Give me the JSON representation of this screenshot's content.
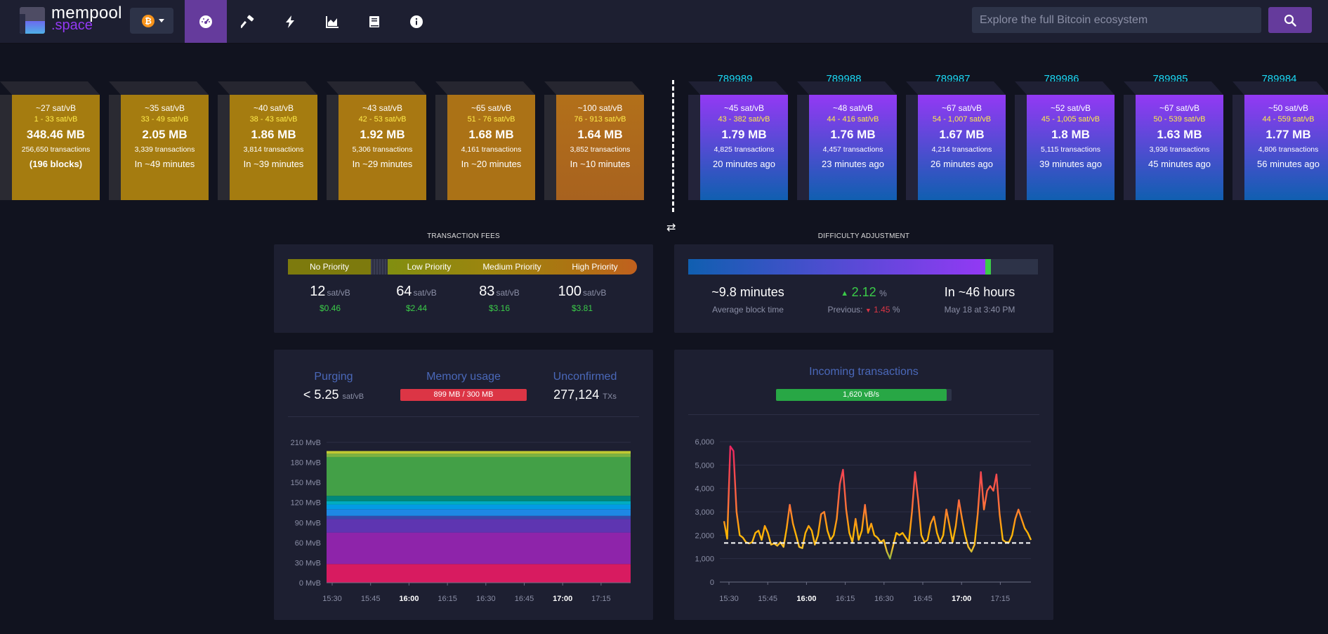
{
  "header": {
    "logo_line1": "mempool",
    "logo_line2": ".space",
    "network_symbol": "₿",
    "nav": [
      {
        "name": "dashboard",
        "icon": "gauge-icon",
        "active": true
      },
      {
        "name": "mining",
        "icon": "hammer-icon"
      },
      {
        "name": "lightning",
        "icon": "bolt-icon"
      },
      {
        "name": "graphs",
        "icon": "chart-area-icon"
      },
      {
        "name": "docs",
        "icon": "book-icon"
      },
      {
        "name": "about",
        "icon": "info-icon"
      }
    ],
    "search_placeholder": "Explore the full Bitcoin ecosystem",
    "colors": {
      "bar": "#1d1f31",
      "active": "#653b9c",
      "search_btn": "#653b9c"
    }
  },
  "mempool_blocks": [
    {
      "fee": "~27 sat/vB",
      "range": "1 - 33 sat/vB",
      "size": "348.46 MB",
      "txs": "256,650 transactions",
      "eta": "(196 blocks)"
    },
    {
      "fee": "~35 sat/vB",
      "range": "33 - 49 sat/vB",
      "size": "2.05 MB",
      "txs": "3,339 transactions",
      "eta": "In ~49 minutes"
    },
    {
      "fee": "~40 sat/vB",
      "range": "38 - 43 sat/vB",
      "size": "1.86 MB",
      "txs": "3,814 transactions",
      "eta": "In ~39 minutes"
    },
    {
      "fee": "~43 sat/vB",
      "range": "42 - 53 sat/vB",
      "size": "1.92 MB",
      "txs": "5,306 transactions",
      "eta": "In ~29 minutes"
    },
    {
      "fee": "~65 sat/vB",
      "range": "51 - 76 sat/vB",
      "size": "1.68 MB",
      "txs": "4,161 transactions",
      "eta": "In ~20 minutes"
    },
    {
      "fee": "~100 sat/vB",
      "range": "76 - 913 sat/vB",
      "size": "1.64 MB",
      "txs": "3,852 transactions",
      "eta": "In ~10 minutes"
    }
  ],
  "confirmed_blocks": [
    {
      "height": "789989",
      "fee": "~45 sat/vB",
      "range": "43 - 382 sat/vB",
      "size": "1.79 MB",
      "txs": "4,825 transactions",
      "age": "20 minutes ago"
    },
    {
      "height": "789988",
      "fee": "~48 sat/vB",
      "range": "44 - 416 sat/vB",
      "size": "1.76 MB",
      "txs": "4,457 transactions",
      "age": "23 minutes ago"
    },
    {
      "height": "789987",
      "fee": "~67 sat/vB",
      "range": "54 - 1,007 sat/vB",
      "size": "1.67 MB",
      "txs": "4,214 transactions",
      "age": "26 minutes ago"
    },
    {
      "height": "789986",
      "fee": "~52 sat/vB",
      "range": "45 - 1,005 sat/vB",
      "size": "1.8 MB",
      "txs": "5,115 transactions",
      "age": "39 minutes ago"
    },
    {
      "height": "789985",
      "fee": "~67 sat/vB",
      "range": "50 - 539 sat/vB",
      "size": "1.63 MB",
      "txs": "3,936 transactions",
      "age": "45 minutes ago"
    },
    {
      "height": "789984",
      "fee": "~50 sat/vB",
      "range": "44 - 559 sat/vB",
      "size": "1.77 MB",
      "txs": "4,806 transactions",
      "age": "56 minutes ago"
    }
  ],
  "fees": {
    "title": "TRANSACTION FEES",
    "labels": [
      "No Priority",
      "Low Priority",
      "Medium Priority",
      "High Priority"
    ],
    "values": [
      {
        "value": "12",
        "unit": "sat/vB",
        "usd": "$0.46"
      },
      {
        "value": "64",
        "unit": "sat/vB",
        "usd": "$2.44"
      },
      {
        "value": "83",
        "unit": "sat/vB",
        "usd": "$3.16"
      },
      {
        "value": "100",
        "unit": "sat/vB",
        "usd": "$3.81"
      }
    ]
  },
  "difficulty": {
    "title": "DIFFICULTY ADJUSTMENT",
    "progress_fraction": 0.85,
    "avg_block_time": "~9.8 minutes",
    "avg_block_time_label": "Average block time",
    "change": "2.12",
    "change_unit": "%",
    "previous_label": "Previous:",
    "previous": "1.45",
    "previous_unit": "%",
    "eta": "In ~46 hours",
    "eta_date": "May 18 at 3:40 PM"
  },
  "mempool_stats": {
    "purging_label": "Purging",
    "purging_value": "< 5.25",
    "purging_unit": "sat/vB",
    "memory_label": "Memory usage",
    "memory_value": "899 MB / 300 MB",
    "unconfirmed_label": "Unconfirmed",
    "unconfirmed_value": "277,124",
    "unconfirmed_unit": "TXs"
  },
  "incoming": {
    "label": "Incoming transactions",
    "rate": "1,620 vB/s",
    "fill_fraction": 0.97
  },
  "chart_data": [
    {
      "type": "area",
      "title": "",
      "y_ticks": [
        "0 MvB",
        "30 MvB",
        "60 MvB",
        "90 MvB",
        "120 MvB",
        "150 MvB",
        "180 MvB",
        "210 MvB"
      ],
      "ylim": [
        0,
        210
      ],
      "x_ticks": [
        "15:30",
        "15:45",
        "16:00",
        "16:15",
        "16:30",
        "16:45",
        "17:00",
        "17:15"
      ],
      "bold_ticks": [
        "16:00",
        "17:00"
      ],
      "stacked_bands": [
        {
          "color": "#d81b60",
          "from": 0,
          "to": 28
        },
        {
          "color": "#8e24aa",
          "from": 28,
          "to": 75
        },
        {
          "color": "#5e35b1",
          "from": 75,
          "to": 95
        },
        {
          "color": "#3949ab",
          "from": 95,
          "to": 100
        },
        {
          "color": "#1e88e5",
          "from": 100,
          "to": 110
        },
        {
          "color": "#039be5",
          "from": 110,
          "to": 117
        },
        {
          "color": "#00acc1",
          "from": 117,
          "to": 122
        },
        {
          "color": "#00897b",
          "from": 122,
          "to": 130
        },
        {
          "color": "#43a047",
          "from": 130,
          "to": 188
        },
        {
          "color": "#7cb342",
          "from": 188,
          "to": 193
        },
        {
          "color": "#c0ca33",
          "from": 193,
          "to": 197
        }
      ]
    },
    {
      "type": "line",
      "title": "",
      "y_ticks": [
        "0",
        "1,000",
        "2,000",
        "3,000",
        "4,000",
        "5,000",
        "6,000"
      ],
      "ylim": [
        0,
        6000
      ],
      "x_ticks": [
        "15:30",
        "15:45",
        "16:00",
        "16:15",
        "16:30",
        "16:45",
        "17:00",
        "17:15"
      ],
      "bold_ticks": [
        "16:00",
        "17:00"
      ],
      "threshold": 1667,
      "values": [
        2600,
        1850,
        5800,
        5600,
        3000,
        2000,
        1900,
        1700,
        1650,
        1700,
        2100,
        2200,
        1800,
        2400,
        2100,
        1600,
        1650,
        1550,
        1700,
        1500,
        2300,
        3300,
        2500,
        2000,
        1500,
        1450,
        2100,
        2400,
        2200,
        1600,
        2000,
        2900,
        3000,
        2200,
        1800,
        2000,
        2700,
        4200,
        4800,
        3100,
        2100,
        1700,
        2700,
        1800,
        2200,
        3300,
        2100,
        2500,
        2000,
        1900,
        1700,
        1800,
        1300,
        1000,
        1550,
        2100,
        2000,
        2100,
        1900,
        1700,
        3000,
        4700,
        3500,
        2000,
        1700,
        1800,
        2500,
        2800,
        2100,
        1700,
        2000,
        3100,
        2400,
        1700,
        2400,
        3500,
        2700,
        2000,
        1500,
        1300,
        1600,
        2900,
        4700,
        3100,
        3900,
        4100,
        3900,
        4600,
        2900,
        1800,
        1700,
        1700,
        2000,
        2700,
        3100,
        2700,
        2300,
        2100,
        1800
      ]
    }
  ]
}
